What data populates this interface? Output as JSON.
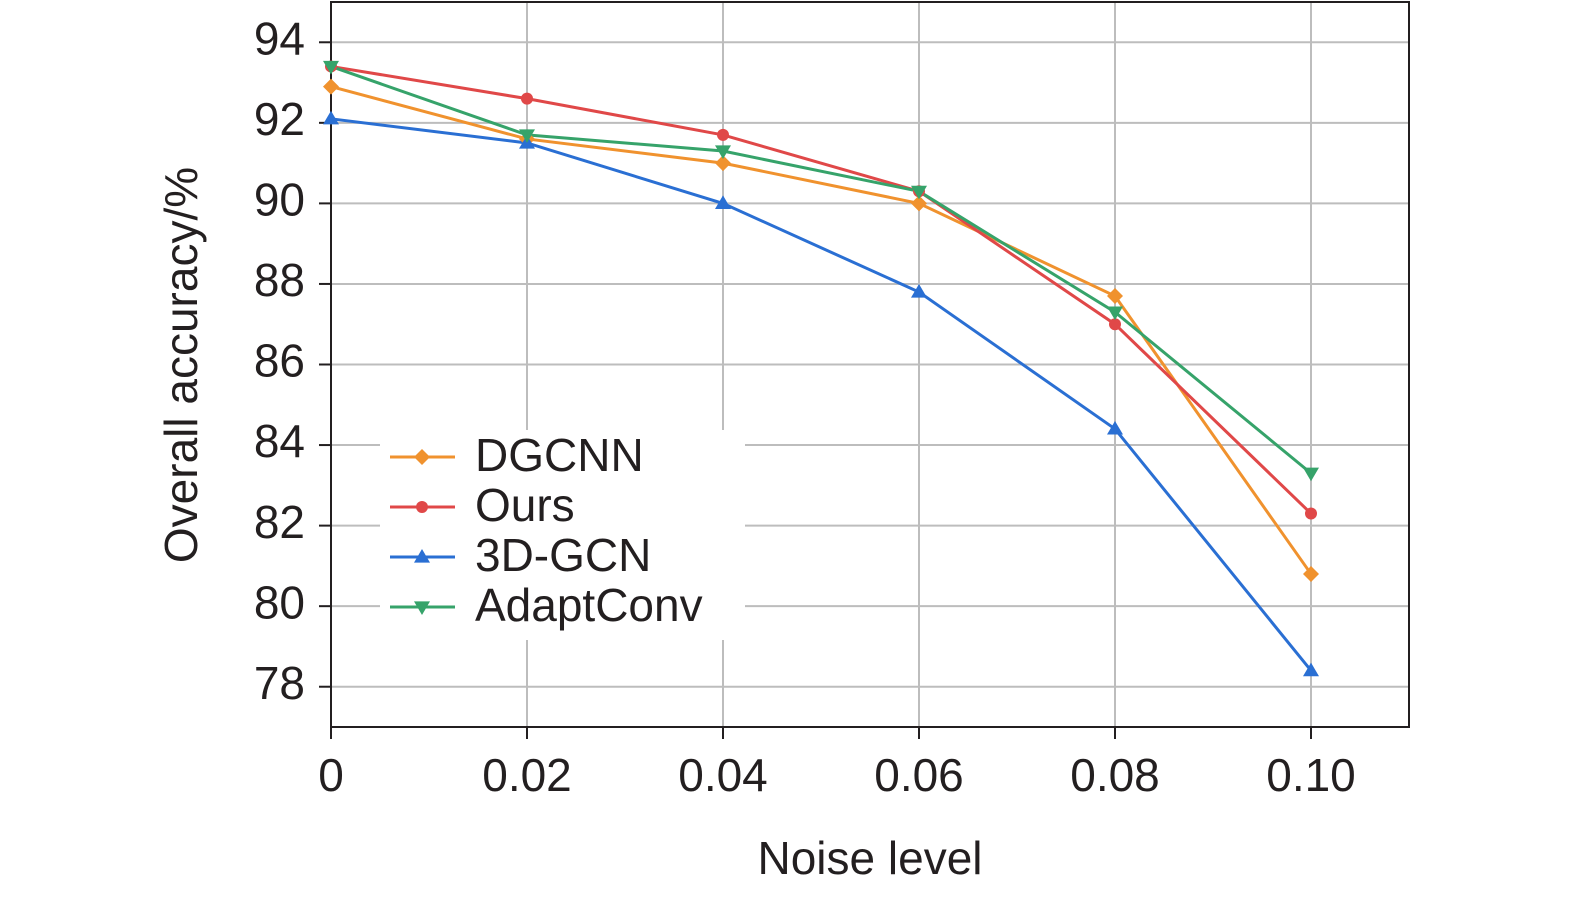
{
  "chart_data": {
    "type": "line",
    "x": [
      0,
      0.02,
      0.04,
      0.06,
      0.08,
      0.1
    ],
    "xlabel": "Noise level",
    "ylabel": "Overall accuracy/%",
    "series": [
      {
        "name": "DGCNN",
        "color": "#f0922e",
        "marker": "diamond",
        "values": [
          92.9,
          91.6,
          91.0,
          90.0,
          87.7,
          80.8
        ]
      },
      {
        "name": "Ours",
        "color": "#e04848",
        "marker": "circle",
        "values": [
          93.4,
          92.6,
          91.7,
          90.3,
          87.0,
          82.3
        ]
      },
      {
        "name": "3D-GCN",
        "color": "#2a6fd3",
        "marker": "triangle-up",
        "values": [
          92.1,
          91.5,
          90.0,
          87.8,
          84.4,
          78.4
        ]
      },
      {
        "name": "AdaptConv",
        "color": "#36a36a",
        "marker": "triangle-down",
        "values": [
          93.4,
          91.7,
          91.3,
          90.3,
          87.3,
          83.3
        ]
      }
    ],
    "xlim": [
      0,
      0.11
    ],
    "xticks": [
      0,
      0.02,
      0.04,
      0.06,
      0.08,
      {
        "value": 0.1,
        "label": "0.10"
      }
    ],
    "ylim": [
      77,
      95
    ],
    "yticks": [
      78,
      80,
      82,
      84,
      86,
      88,
      90,
      92,
      94
    ],
    "grid": true,
    "legend": "lower left"
  }
}
